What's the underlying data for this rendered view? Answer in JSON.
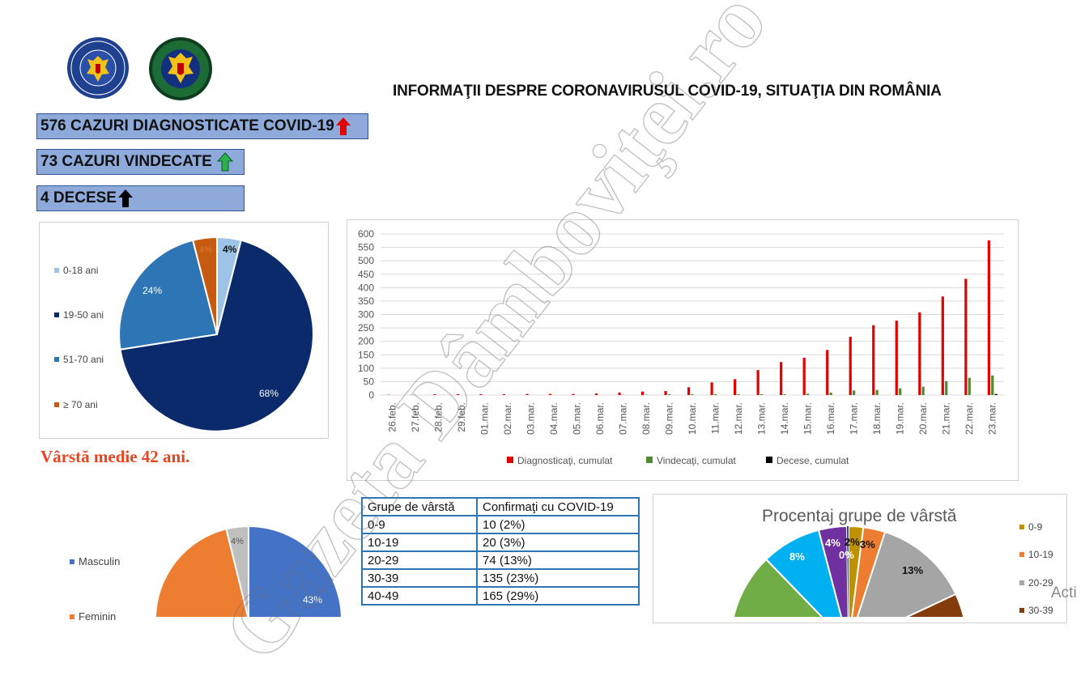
{
  "header": {
    "title": "INFORMAŢII DESPRE CORONAVIRUSUL COVID-19, SITUAŢIA DIN ROMÂNIA",
    "logo_left_text": "GUVERNUL ROMÂNIEI",
    "logo_right_text": "DEPARTAMENTUL PENTRU SITUAŢII DE URGENŢĂ M.A.I."
  },
  "stats": [
    {
      "text": "576 CAZURI DIAGNOSTICATE COVID-19",
      "arrow": "arrow-up-red-icon",
      "color": "#e00000"
    },
    {
      "text": "73 CAZURI VINDECATE",
      "arrow": "arrow-up-green-icon",
      "color": "#2bb04a"
    },
    {
      "text": "4 DECESE",
      "arrow": "arrow-up-black-icon",
      "color": "#000000"
    }
  ],
  "age_pie": {
    "legend": [
      "0-18 ani",
      "19-50 ani",
      "51-70 ani",
      "≥ 70 ani"
    ],
    "labels": [
      "4%",
      "68%",
      "24%",
      "4%"
    ],
    "colors": [
      "#9dc3e6",
      "#0b2a6b",
      "#2e75b6",
      "#c55a11"
    ]
  },
  "average_age": "Vârstă medie 42 ani.",
  "chart_data": {
    "type": "bar",
    "categories": [
      "26.feb.",
      "27.feb.",
      "28.feb.",
      "29.feb.",
      "01.mar.",
      "02.mar.",
      "03.mar.",
      "04.mar.",
      "05.mar.",
      "06.mar.",
      "07.mar.",
      "08.mar.",
      "09.mar.",
      "10.mar.",
      "11.mar.",
      "12.mar.",
      "13.mar.",
      "14.mar.",
      "15.mar.",
      "16.mar.",
      "17.mar.",
      "18.mar.",
      "19.mar.",
      "20.mar.",
      "21.mar.",
      "22.mar.",
      "23.mar."
    ],
    "series": [
      {
        "name": "Diagnosticaţi, cumulat",
        "color": "#e00000",
        "values": [
          1,
          1,
          3,
          3,
          3,
          3,
          4,
          4,
          4,
          6,
          9,
          13,
          15,
          29,
          47,
          59,
          93,
          123,
          139,
          168,
          217,
          260,
          277,
          308,
          367,
          433,
          576
        ]
      },
      {
        "name": "Vindecaţi, cumulat",
        "color": "#4f8a2e",
        "values": [
          0,
          0,
          0,
          0,
          0,
          0,
          0,
          0,
          0,
          0,
          1,
          1,
          3,
          3,
          3,
          3,
          3,
          3,
          5,
          9,
          17,
          19,
          25,
          31,
          52,
          64,
          73
        ]
      },
      {
        "name": "Decese, cumulat",
        "color": "#000000",
        "values": [
          0,
          0,
          0,
          0,
          0,
          0,
          0,
          0,
          0,
          0,
          0,
          0,
          0,
          0,
          0,
          0,
          0,
          0,
          0,
          0,
          0,
          0,
          0,
          0,
          0,
          0,
          4
        ]
      }
    ],
    "ylim": [
      0,
      600
    ],
    "yticks": [
      "0",
      "50",
      "100",
      "150",
      "200",
      "250",
      "300",
      "350",
      "400",
      "450",
      "500",
      "550",
      "600"
    ],
    "grid": true,
    "legend_position": "bottom"
  },
  "gender_pie": {
    "legend": [
      "Masculin",
      "Feminin"
    ],
    "labels": [
      "43%",
      "4%"
    ],
    "colors": [
      "#4472c4",
      "#ed7d31",
      "#bfbfbf"
    ]
  },
  "age_table": {
    "headers": [
      "Grupe de vârstă",
      "Confirmaţi cu COVID-19"
    ],
    "rows": [
      [
        "0-9",
        "10 (2%)"
      ],
      [
        "10-19",
        "20 (3%)"
      ],
      [
        "20-29",
        "74 (13%)"
      ],
      [
        "30-39",
        "135 (23%)"
      ],
      [
        "40-49",
        "165 (29%)"
      ]
    ]
  },
  "age_group_pie": {
    "title": "Procentaj grupe de vârstă",
    "legend": [
      "0-9",
      "10-19",
      "20-29",
      "30-39"
    ],
    "labels": [
      "2%",
      "3%",
      "13%",
      "8%",
      "4%",
      "0%"
    ],
    "colors": [
      "#bf9000",
      "#ed7d31",
      "#a5a5a5",
      "#843c0c",
      "#00b0f0",
      "#7030a0",
      "#70ad47"
    ]
  },
  "watermark": {
    "text": "Gazeta Dâmboviţei.ro"
  },
  "overlay": {
    "activate_text": "Acti"
  }
}
